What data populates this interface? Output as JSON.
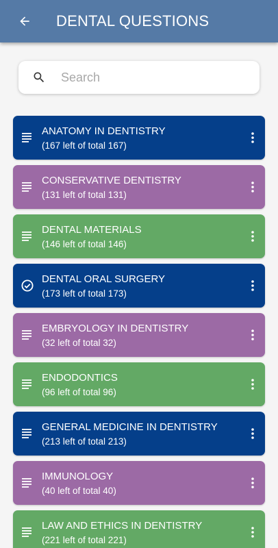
{
  "appbar": {
    "title": "DENTAL QUESTIONS",
    "back_icon": "arrow-left-icon"
  },
  "search": {
    "placeholder": "Search",
    "value": ""
  },
  "colors": {
    "blue": "#053f8a",
    "purple": "#9c6aa5",
    "green": "#63a965",
    "appbar": "#557aa6"
  },
  "items": [
    {
      "title": "ANATOMY IN DENTISTRY",
      "subtitle": "(167 left of total 167)",
      "color": "blue",
      "icon": "list-icon"
    },
    {
      "title": "CONSERVATIVE DENTISTRY",
      "subtitle": "(131 left of total 131)",
      "color": "purple",
      "icon": "list-icon"
    },
    {
      "title": "DENTAL MATERIALS",
      "subtitle": "(146 left of total 146)",
      "color": "green",
      "icon": "list-icon"
    },
    {
      "title": "DENTAL ORAL SURGERY",
      "subtitle": "(173 left of total 173)",
      "color": "blue",
      "icon": "check-circle-icon"
    },
    {
      "title": "EMBRYOLOGY IN DENTISTRY",
      "subtitle": "(32 left of total 32)",
      "color": "purple",
      "icon": "list-icon"
    },
    {
      "title": "ENDODONTICS",
      "subtitle": "(96 left of total 96)",
      "color": "green",
      "icon": "list-icon"
    },
    {
      "title": "GENERAL MEDICINE IN DENTISTRY",
      "subtitle": "(213 left of total 213)",
      "color": "blue",
      "icon": "list-icon"
    },
    {
      "title": "IMMUNOLOGY",
      "subtitle": "(40 left of total 40)",
      "color": "purple",
      "icon": "list-icon"
    },
    {
      "title": "LAW AND ETHICS IN DENTISTRY",
      "subtitle": "(221 left of total 221)",
      "color": "green",
      "icon": "list-icon"
    }
  ]
}
